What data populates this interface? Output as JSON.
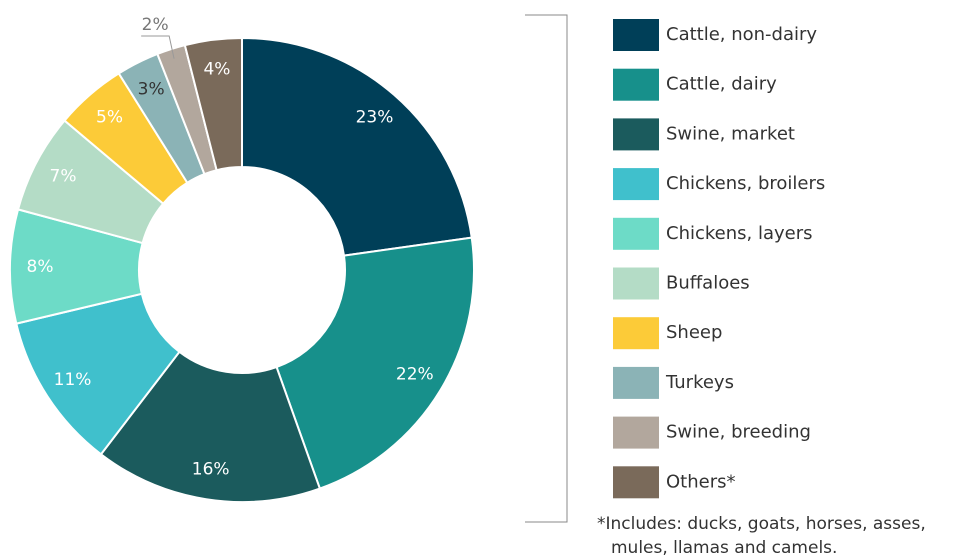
{
  "chart_data": {
    "type": "donut",
    "categories": [
      "Cattle, non-dairy",
      "Cattle, dairy",
      "Swine, market",
      "Chickens, broilers",
      "Chickens, layers",
      "Buffaloes",
      "Sheep",
      "Turkeys",
      "Swine, breeding",
      "Others*"
    ],
    "values": [
      23,
      22,
      16,
      11,
      8,
      7,
      5,
      3,
      2,
      4
    ],
    "value_labels": [
      "23%",
      "22%",
      "16%",
      "11%",
      "8%",
      "7%",
      "5%",
      "3%",
      "2%",
      "4%"
    ],
    "colors": [
      "#003f58",
      "#17908b",
      "#1b5b5d",
      "#40c0cc",
      "#6ddbc7",
      "#b4dcc6",
      "#fccb38",
      "#8bb3b6",
      "#b2a79d",
      "#7a6a5a"
    ],
    "note": [
      "*Includes: ducks, goats, horses, asses,",
      "mules, llamas and camels."
    ]
  }
}
